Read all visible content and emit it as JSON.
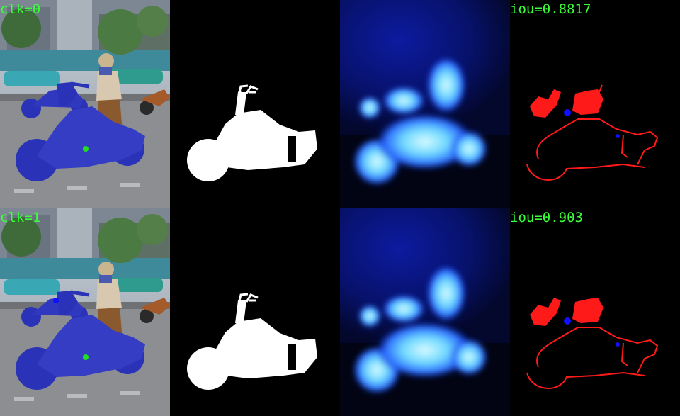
{
  "rows": [
    {
      "click_label": "clk=0",
      "iou_label": "iou=0.8817"
    },
    {
      "click_label": "clk=1",
      "iou_label": "iou=0.903"
    }
  ],
  "colors": {
    "label_text": "#39ff39",
    "mask_fill": "#ffffff",
    "overlay_blue": "#2a33b8",
    "heat_core": "#9fefff",
    "heat_glow": "#0a2cff",
    "error_red": "#ff1a1a",
    "click_dot_positive": "#22dd22",
    "click_dot_blue": "#1010ff"
  }
}
